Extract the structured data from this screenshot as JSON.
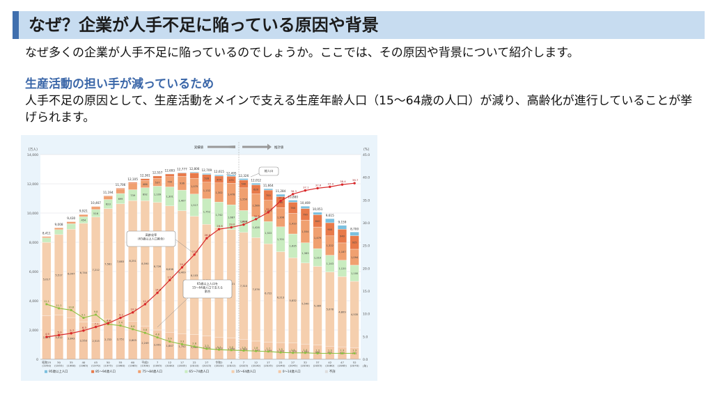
{
  "heading": "なぜ？企業が人手不足に陥っている原因や背景",
  "intro": "なぜ多くの企業が人手不足に陥っているのでしょうか。ここでは、その原因や背景について紹介します。",
  "section": {
    "subheading": "生産活動の担い手が減っているため",
    "body": "人手不足の原因として、生産活動をメインで支える生産年齢人口（15〜64歳の人口）が減り、高齢化が進行していることが挙げられます。"
  },
  "chart_data": {
    "type": "bar",
    "left_unit": "(万人)",
    "right_unit": "(%)",
    "left_ylim": [
      0,
      14000
    ],
    "right_ylim": [
      0,
      45
    ],
    "left_ticks": [
      "0",
      "2,000",
      "4,000",
      "6,000",
      "8,000",
      "10,000",
      "12,000",
      "14,000"
    ],
    "right_ticks": [
      "0.0",
      "5.0",
      "10.0",
      "15.0",
      "20.0",
      "25.0",
      "30.0",
      "35.0",
      "40.0",
      "45.0"
    ],
    "arrow_left_label": "実績値",
    "arrow_right_label": "推計値",
    "year_suffix": "(年)",
    "categories": [
      "昭和25\n(1950)",
      "30\n(1955)",
      "35\n(1960)",
      "40\n(1965)",
      "45\n(1970)",
      "50\n(1975)",
      "55\n(1980)",
      "60\n(1985)",
      "平成2\n(1990)",
      "7\n(1995)",
      "12\n(2000)",
      "17\n(2005)",
      "22\n(2010)",
      "27\n(2015)",
      "令和2\n(2020)",
      "4\n(2022)",
      "7\n(2025)",
      "12\n(2030)",
      "17\n(2035)",
      "22\n(2040)",
      "27\n(2045)",
      "32\n(2050)",
      "37\n(2055)",
      "42\n(2060)",
      "47\n(2065)",
      "52\n(2070)"
    ],
    "totals": [
      8411,
      9008,
      9430,
      9921,
      10467,
      11194,
      11706,
      12105,
      12361,
      12557,
      12693,
      12777,
      12806,
      12709,
      12615,
      12495,
      12326,
      12012,
      11664,
      11284,
      10880,
      10469,
      10051,
      9615,
      9159,
      8700
    ],
    "total_labels": [
      "8,411",
      "9,008",
      "9,430",
      "9,921",
      "10,467",
      "11,194",
      "11,706",
      "12,105",
      "12,361",
      "12,557",
      "12,693",
      "12,777",
      "12,806",
      "12,709",
      "12,615",
      "12,495",
      "12,326",
      "12,012",
      "11,664",
      "11,284",
      "10,880",
      "10,469",
      "10,051",
      "9,615",
      "9,159",
      "8,700"
    ],
    "series": [
      {
        "name": "0〜14歳人口",
        "color": "#f4c8a6",
        "values": [
          2979,
          3012,
          2843,
          2553,
          2515,
          2722,
          2751,
          2603,
          2249,
          2001,
          1847,
          1752,
          1680,
          1595,
          1503,
          1450,
          1363,
          1240,
          1169,
          1142,
          1103,
          1041,
          966,
          893,
          840,
          797
        ]
      },
      {
        "name": "15〜64歳人口",
        "color": "#f5cfae",
        "values": [
          5017,
          5517,
          6047,
          6744,
          7212,
          7581,
          7883,
          8251,
          8590,
          8726,
          8638,
          8409,
          8103,
          7629,
          7509,
          7421,
          7310,
          7076,
          6722,
          6213,
          5832,
          5540,
          5389,
          5078,
          4809,
          4535
        ]
      },
      {
        "name": "65〜74歳人口",
        "color": "#c9ecc0",
        "values": [
          309,
          338,
          378,
          454,
          516,
          623,
          699,
          739,
          892,
          1109,
          1301,
          1407,
          1517,
          1752,
          1742,
          1687,
          1497,
          1428,
          1522,
          1701,
          1635,
          1383,
          1210,
          1143,
          1120,
          1100
        ]
      },
      {
        "name": "75〜84歳人口",
        "color": "#f0a070",
        "values": [
          82,
          114,
          132,
          139,
          191,
          223,
          305,
          417,
          486,
          537,
          700,
          936,
          1075,
          1132,
          1302,
          1478,
          1550,
          1566,
          1457,
          1306,
          1410,
          1554,
          1479,
          1322,
          1187,
          1094
        ]
      },
      {
        "name": "85〜94歳人口",
        "color": "#e87a4a",
        "values": [
          23,
          26,
          29,
          30,
          31,
          43,
          65,
          92,
          138,
          171,
          185,
          236,
          376,
          528,
          474,
          475,
          540,
          620,
          700,
          760,
          760,
          790,
          840,
          900,
          940,
          925
        ]
      },
      {
        "name": "95歳以上人口",
        "color": "#7cc0de",
        "values": [
          1,
          1,
          1,
          1,
          2,
          2,
          3,
          3,
          6,
          13,
          22,
          37,
          55,
          73,
          85,
          94,
          98,
          113,
          94,
          162,
          140,
          161,
          167,
          279,
          263,
          249
        ]
      }
    ],
    "aging_rate": {
      "name": "高齢化率",
      "color": "#d8282a",
      "values": [
        4.9,
        5.3,
        5.7,
        6.3,
        7.1,
        7.9,
        9.1,
        10.3,
        12.1,
        14.6,
        17.4,
        20.2,
        23.0,
        26.6,
        28.6,
        29.0,
        29.6,
        30.8,
        32.3,
        34.8,
        36.3,
        37.1,
        37.6,
        37.9,
        38.4,
        38.7
      ],
      "labels": [
        "4.9",
        "5.3",
        "5.7",
        "6.3",
        "7.1",
        "7.9",
        "9.1",
        "10.3",
        "12.1",
        "14.6",
        "17.4",
        "20.2",
        "23.0",
        "26.6",
        "28.6",
        "29.0",
        "29.6",
        "30.8",
        "32.3",
        "34.8",
        "36.3",
        "37.1",
        "37.6",
        "37.9",
        "38.4",
        "38.7"
      ]
    },
    "support_ratio": {
      "name": "65歳以上人口を15〜64歳人口で支える割合",
      "color": "#8cc040",
      "values": [
        12.1,
        11.2,
        10.8,
        9.1,
        9.8,
        7.7,
        7.4,
        6.6,
        5.8,
        4.8,
        3.9,
        3.3,
        2.8,
        2.3,
        2.1,
        2.0,
        1.9,
        1.8,
        1.7,
        1.5,
        1.4,
        1.4,
        1.3,
        1.3,
        1.3,
        1.3
      ]
    },
    "callouts": {
      "aging": "高齢化率\n(65歳以上人口割合)",
      "support": "65歳以上人口を\n15〜64歳人口で支える\n割合",
      "total": "総人口"
    },
    "legend": [
      "95歳以上人口",
      "85〜94歳人口",
      "75〜84歳人口",
      "65〜74歳人口",
      "15〜64歳人口",
      "0〜14歳人口",
      "不詳"
    ],
    "legend_colors": [
      "#7cc0de",
      "#e87a4a",
      "#f0a070",
      "#c9ecc0",
      "#f5cfae",
      "#f4c8a6",
      "#dddddd"
    ]
  }
}
